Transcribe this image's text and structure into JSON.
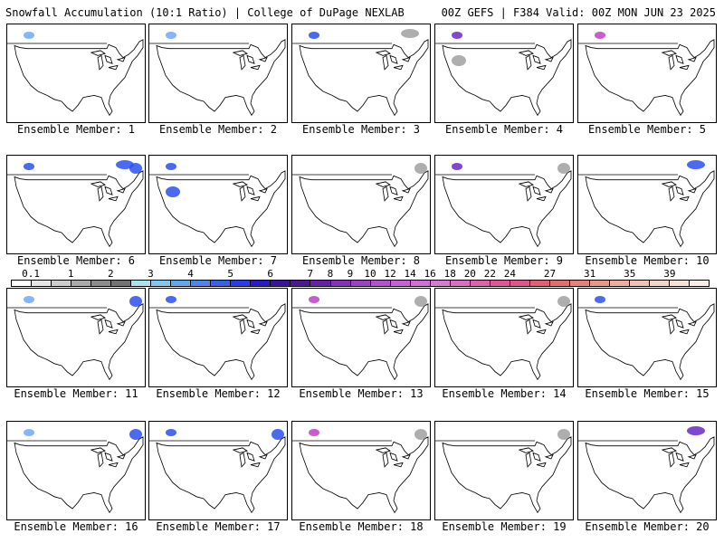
{
  "header": {
    "title_left": "Snowfall Accumulation (10:1 Ratio) | College of DuPage NEXLAB",
    "title_right": "00Z GEFS | F384 Valid: 00Z MON JUN 23 2025"
  },
  "panels": [
    {
      "label": "Ensemble Member: 1",
      "snow": [
        {
          "region": "bc",
          "level": "light-blue"
        }
      ]
    },
    {
      "label": "Ensemble Member: 2",
      "snow": [
        {
          "region": "bc",
          "level": "light-blue"
        }
      ]
    },
    {
      "label": "Ensemble Member: 3",
      "snow": [
        {
          "region": "bc",
          "level": "blue"
        },
        {
          "region": "canada",
          "level": "gray"
        }
      ]
    },
    {
      "label": "Ensemble Member: 4",
      "snow": [
        {
          "region": "bc",
          "level": "purple"
        },
        {
          "region": "rockies",
          "level": "gray"
        }
      ]
    },
    {
      "label": "Ensemble Member: 5",
      "snow": [
        {
          "region": "bc",
          "level": "magenta"
        }
      ]
    },
    {
      "label": "Ensemble Member: 6",
      "snow": [
        {
          "region": "bc",
          "level": "blue"
        },
        {
          "region": "canada",
          "level": "blue"
        },
        {
          "region": "quebec",
          "level": "blue"
        }
      ]
    },
    {
      "label": "Ensemble Member: 7",
      "snow": [
        {
          "region": "bc",
          "level": "blue"
        },
        {
          "region": "rockies",
          "level": "blue"
        }
      ]
    },
    {
      "label": "Ensemble Member: 8",
      "snow": [
        {
          "region": "quebec",
          "level": "gray"
        }
      ]
    },
    {
      "label": "Ensemble Member: 9",
      "snow": [
        {
          "region": "bc",
          "level": "purple"
        },
        {
          "region": "quebec",
          "level": "gray"
        }
      ]
    },
    {
      "label": "Ensemble Member: 10",
      "snow": [
        {
          "region": "canada",
          "level": "blue"
        }
      ]
    },
    {
      "label": "Ensemble Member: 11",
      "snow": [
        {
          "region": "bc",
          "level": "light-blue"
        },
        {
          "region": "quebec",
          "level": "blue"
        }
      ]
    },
    {
      "label": "Ensemble Member: 12",
      "snow": [
        {
          "region": "bc",
          "level": "blue"
        }
      ]
    },
    {
      "label": "Ensemble Member: 13",
      "snow": [
        {
          "region": "bc",
          "level": "magenta"
        },
        {
          "region": "quebec",
          "level": "gray"
        }
      ]
    },
    {
      "label": "Ensemble Member: 14",
      "snow": [
        {
          "region": "quebec",
          "level": "gray"
        }
      ]
    },
    {
      "label": "Ensemble Member: 15",
      "snow": [
        {
          "region": "bc",
          "level": "blue"
        }
      ]
    },
    {
      "label": "Ensemble Member: 16",
      "snow": [
        {
          "region": "bc",
          "level": "light-blue"
        },
        {
          "region": "quebec",
          "level": "blue"
        }
      ]
    },
    {
      "label": "Ensemble Member: 17",
      "snow": [
        {
          "region": "bc",
          "level": "blue"
        },
        {
          "region": "quebec",
          "level": "blue"
        }
      ]
    },
    {
      "label": "Ensemble Member: 18",
      "snow": [
        {
          "region": "bc",
          "level": "magenta"
        },
        {
          "region": "quebec",
          "level": "gray"
        }
      ]
    },
    {
      "label": "Ensemble Member: 19",
      "snow": [
        {
          "region": "quebec",
          "level": "gray"
        }
      ]
    },
    {
      "label": "Ensemble Member: 20",
      "snow": [
        {
          "region": "canada",
          "level": "purple"
        }
      ]
    }
  ],
  "colorbar": {
    "ticks": [
      "0.1",
      "1",
      "2",
      "3",
      "4",
      "5",
      "6",
      "7",
      "8",
      "9",
      "10",
      "12",
      "14",
      "16",
      "18",
      "20",
      "22",
      "24",
      "27",
      "31",
      "35",
      "39"
    ],
    "colors": [
      "#ffffff",
      "#e6e6e6",
      "#cdcdcd",
      "#aaaaaa",
      "#8c8c8c",
      "#737373",
      "#a8e4f0",
      "#7fc8f2",
      "#5ea8f0",
      "#4a86ee",
      "#3860ea",
      "#2a3cf0",
      "#2a1ac8",
      "#3c12a0",
      "#501496",
      "#6a1fa8",
      "#8431b8",
      "#9c40c4",
      "#b650d0",
      "#c860d8",
      "#d26ed8",
      "#d87ad4",
      "#dc6cc4",
      "#e060b0",
      "#e4549c",
      "#e45488",
      "#e45e76",
      "#e46e6e",
      "#e6827a",
      "#e99888",
      "#eeae9c",
      "#f2c2b0",
      "#f6d4c4",
      "#f8e2d6",
      "#fbeee6"
    ]
  },
  "snow_colors": {
    "gray": "#a0a0a0",
    "light-blue": "#6ea8ff",
    "blue": "#2a50f0",
    "purple": "#6a28c8",
    "magenta": "#c040c8"
  }
}
